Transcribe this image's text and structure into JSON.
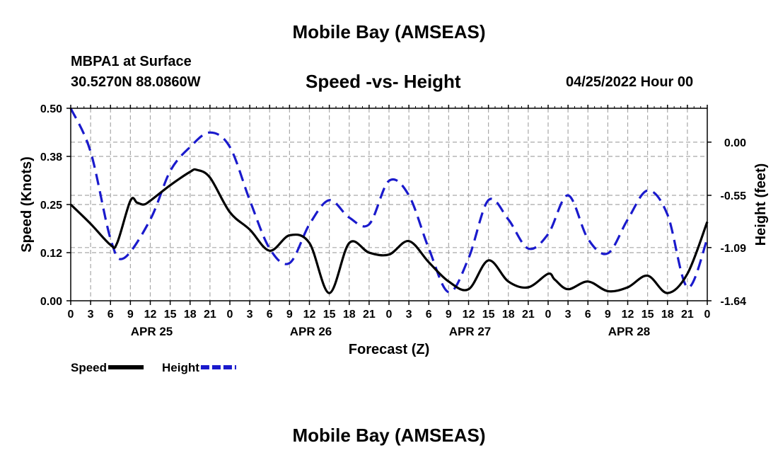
{
  "header": {
    "title": "Mobile Bay (AMSEAS)",
    "station": "MBPA1 at Surface",
    "coords": "30.5270N  88.0860W",
    "datetime": "04/25/2022 Hour 00",
    "bottom_title": "Mobile Bay (AMSEAS)"
  },
  "chart_data": {
    "type": "line",
    "title": "Speed -vs- Height",
    "xlabel": "Forecast (Z)",
    "ylabel_left": "Speed (Knots)",
    "ylabel_right": "Height (feet)",
    "x_hours_range": [
      0,
      96
    ],
    "x_tick_labels": [
      "0",
      "3",
      "6",
      "9",
      "12",
      "15",
      "18",
      "21",
      "0",
      "3",
      "6",
      "9",
      "12",
      "15",
      "18",
      "21",
      "0",
      "3",
      "6",
      "9",
      "12",
      "15",
      "18",
      "21",
      "0",
      "3",
      "6",
      "9",
      "12",
      "15",
      "18",
      "21",
      "0"
    ],
    "day_labels": [
      {
        "label": "APR 25",
        "hour": 12
      },
      {
        "label": "APR 26",
        "hour": 36
      },
      {
        "label": "APR 27",
        "hour": 60
      },
      {
        "label": "APR 28",
        "hour": 84
      }
    ],
    "left_ylim": [
      0,
      0.5
    ],
    "left_ticks": [
      "0.00",
      "0.12",
      "0.25",
      "0.38",
      "0.50"
    ],
    "left_tick_values": [
      0,
      0.125,
      0.25,
      0.375,
      0.5
    ],
    "right_ylim": [
      -1.64,
      0.35
    ],
    "right_ticks": [
      "0.00",
      "-0.55",
      "-1.09",
      "-1.64"
    ],
    "right_tick_values": [
      0.0,
      -0.55,
      -1.09,
      -1.64
    ],
    "grid": true,
    "legend": "bottom-left",
    "series": [
      {
        "name": "Speed",
        "color": "#000000",
        "dash": "solid",
        "axis": "left",
        "x": [
          0,
          3,
          6,
          7,
          9,
          10,
          11,
          12,
          15,
          18,
          19,
          21,
          24,
          27,
          30,
          33,
          36,
          39,
          42,
          45,
          48,
          51,
          54,
          57,
          60,
          63,
          66,
          69,
          72,
          73,
          75,
          78,
          81,
          84,
          87,
          90,
          93,
          96
        ],
        "values": [
          0.25,
          0.2,
          0.145,
          0.15,
          0.26,
          0.255,
          0.25,
          0.26,
          0.3,
          0.335,
          0.34,
          0.32,
          0.23,
          0.185,
          0.13,
          0.17,
          0.15,
          0.02,
          0.15,
          0.125,
          0.12,
          0.155,
          0.1,
          0.05,
          0.03,
          0.105,
          0.05,
          0.035,
          0.07,
          0.055,
          0.03,
          0.05,
          0.025,
          0.035,
          0.065,
          0.02,
          0.07,
          0.205
        ]
      },
      {
        "name": "Height",
        "color": "#1a1acc",
        "dash": "dashed",
        "axis": "right",
        "x": [
          0,
          3,
          6,
          8,
          12,
          15,
          18,
          21,
          24,
          27,
          30,
          33,
          36,
          39,
          42,
          45,
          48,
          51,
          54,
          57,
          60,
          63,
          66,
          69,
          72,
          75,
          78,
          81,
          84,
          87,
          90,
          93,
          96
        ],
        "values": [
          0.35,
          -0.1,
          -1.0,
          -1.2,
          -0.8,
          -0.3,
          -0.05,
          0.1,
          -0.05,
          -0.6,
          -1.1,
          -1.25,
          -0.85,
          -0.6,
          -0.78,
          -0.85,
          -0.4,
          -0.55,
          -1.1,
          -1.55,
          -1.2,
          -0.6,
          -0.8,
          -1.1,
          -0.95,
          -0.55,
          -1.0,
          -1.15,
          -0.8,
          -0.5,
          -0.75,
          -1.5,
          -1.0
        ]
      }
    ]
  }
}
